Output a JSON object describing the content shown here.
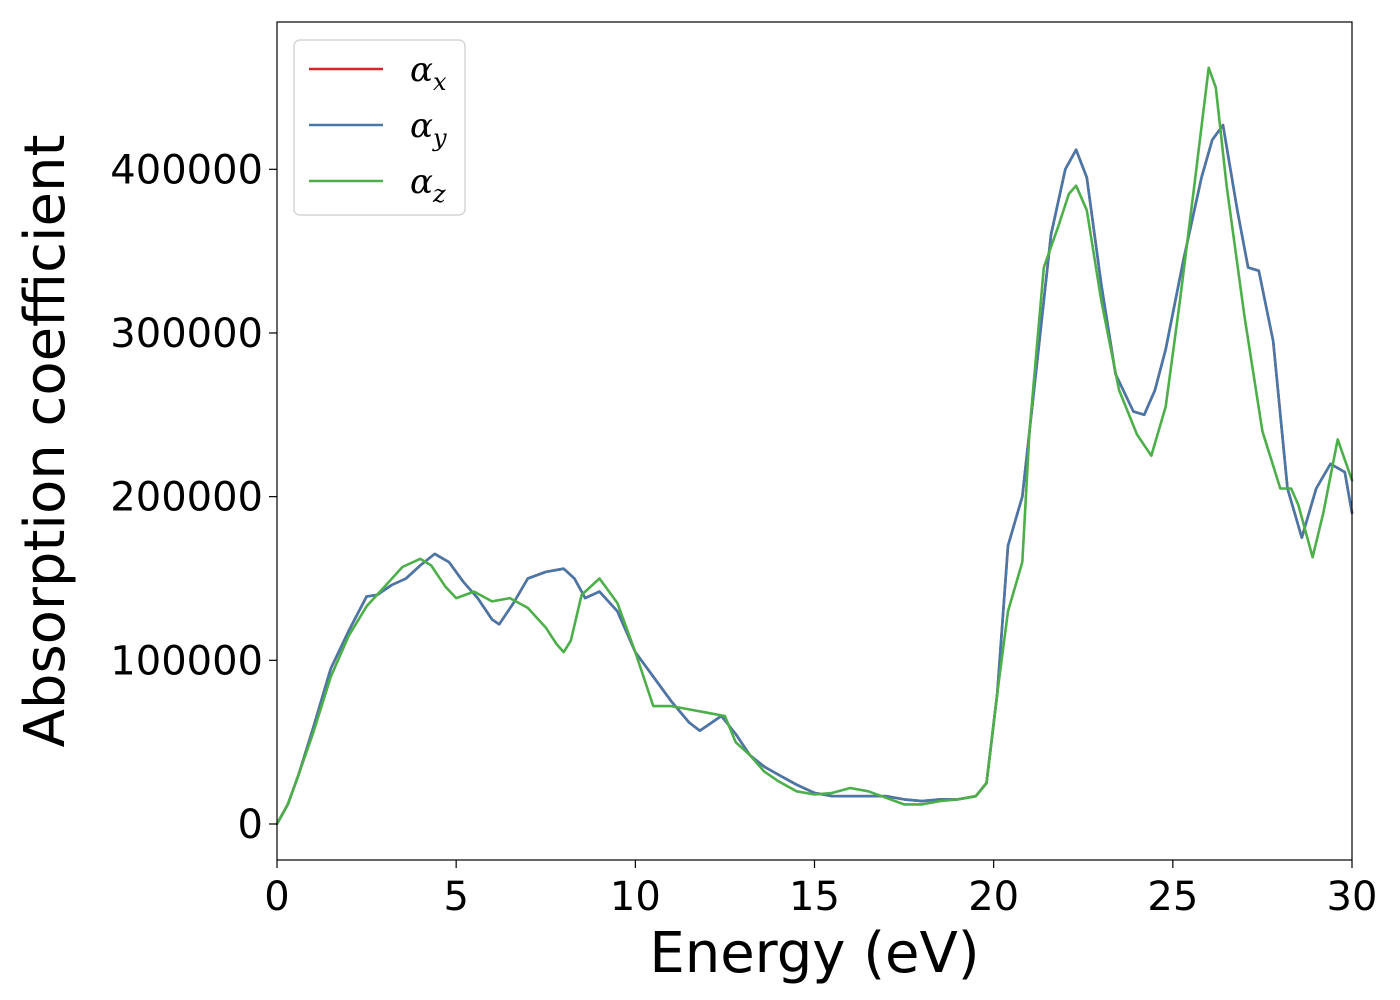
{
  "chart_data": {
    "type": "line",
    "title": "",
    "xlabel": "Energy (eV)",
    "ylabel": "Absorption coefficient",
    "xlim": [
      0,
      30
    ],
    "ylim": [
      -22000,
      490000
    ],
    "xticks": [
      0,
      5,
      10,
      15,
      20,
      25,
      30
    ],
    "yticks": [
      0,
      100000,
      200000,
      300000,
      400000
    ],
    "grid": false,
    "legend_position": "top-left",
    "series": [
      {
        "name": "αx",
        "symbol": "α",
        "subscript": "x",
        "color": "#d62728",
        "x": [
          0,
          0.3,
          0.6,
          1.0,
          1.5,
          2.0,
          2.5,
          2.8,
          3.2,
          3.6,
          4.0,
          4.4,
          4.8,
          5.2,
          5.6,
          6.0,
          6.2,
          6.6,
          7.0,
          7.5,
          8.0,
          8.3,
          8.6,
          9.0,
          9.5,
          10.0,
          10.5,
          11.0,
          11.5,
          11.8,
          12.0,
          12.4,
          12.8,
          13.2,
          13.6,
          14.0,
          14.5,
          15.0,
          15.5,
          16.0,
          16.5,
          17.0,
          17.5,
          18.0,
          18.5,
          19.0,
          19.5,
          19.8,
          20.1,
          20.4,
          20.8,
          21.2,
          21.6,
          22.0,
          22.3,
          22.6,
          23.0,
          23.4,
          23.9,
          24.2,
          24.5,
          24.8,
          25.3,
          25.8,
          26.1,
          26.4,
          26.8,
          27.1,
          27.4,
          27.8,
          28.2,
          28.6,
          29.0,
          29.4,
          29.8,
          30.0
        ],
        "values": [
          0,
          12000,
          30000,
          58000,
          95000,
          118000,
          139000,
          140000,
          146000,
          150000,
          158000,
          165000,
          160000,
          148000,
          138000,
          125000,
          122000,
          135000,
          150000,
          154000,
          156000,
          150000,
          138000,
          142000,
          130000,
          105000,
          90000,
          75000,
          62000,
          57000,
          60000,
          66000,
          55000,
          42000,
          35000,
          30000,
          24000,
          19000,
          17000,
          17000,
          17000,
          17000,
          15000,
          14000,
          15000,
          15000,
          17000,
          25000,
          80000,
          170000,
          200000,
          280000,
          360000,
          400000,
          412000,
          395000,
          330000,
          275000,
          252000,
          250000,
          265000,
          290000,
          345000,
          395000,
          418000,
          427000,
          375000,
          340000,
          338000,
          295000,
          205000,
          175000,
          205000,
          220000,
          215000,
          190000
        ]
      },
      {
        "name": "αy",
        "symbol": "α",
        "subscript": "y",
        "color": "#4878a8",
        "x": [
          0,
          0.3,
          0.6,
          1.0,
          1.5,
          2.0,
          2.5,
          2.8,
          3.2,
          3.6,
          4.0,
          4.4,
          4.8,
          5.2,
          5.6,
          6.0,
          6.2,
          6.6,
          7.0,
          7.5,
          8.0,
          8.3,
          8.6,
          9.0,
          9.5,
          10.0,
          10.5,
          11.0,
          11.5,
          11.8,
          12.0,
          12.4,
          12.8,
          13.2,
          13.6,
          14.0,
          14.5,
          15.0,
          15.5,
          16.0,
          16.5,
          17.0,
          17.5,
          18.0,
          18.5,
          19.0,
          19.5,
          19.8,
          20.1,
          20.4,
          20.8,
          21.2,
          21.6,
          22.0,
          22.3,
          22.6,
          23.0,
          23.4,
          23.9,
          24.2,
          24.5,
          24.8,
          25.3,
          25.8,
          26.1,
          26.4,
          26.8,
          27.1,
          27.4,
          27.8,
          28.2,
          28.6,
          29.0,
          29.4,
          29.8,
          30.0
        ],
        "values": [
          0,
          12000,
          30000,
          58000,
          95000,
          118000,
          139000,
          140000,
          146000,
          150000,
          158000,
          165000,
          160000,
          148000,
          138000,
          125000,
          122000,
          135000,
          150000,
          154000,
          156000,
          150000,
          138000,
          142000,
          130000,
          105000,
          90000,
          75000,
          62000,
          57000,
          60000,
          66000,
          55000,
          42000,
          35000,
          30000,
          24000,
          19000,
          17000,
          17000,
          17000,
          17000,
          15000,
          14000,
          15000,
          15000,
          17000,
          25000,
          80000,
          170000,
          200000,
          280000,
          360000,
          400000,
          412000,
          395000,
          330000,
          275000,
          252000,
          250000,
          265000,
          290000,
          345000,
          395000,
          418000,
          427000,
          375000,
          340000,
          338000,
          295000,
          205000,
          175000,
          205000,
          220000,
          215000,
          190000
        ]
      },
      {
        "name": "αz",
        "symbol": "α",
        "subscript": "z",
        "color": "#4daf4a",
        "x": [
          0,
          0.3,
          0.6,
          1.0,
          1.5,
          2.0,
          2.5,
          3.0,
          3.5,
          4.0,
          4.3,
          4.7,
          5.0,
          5.5,
          6.0,
          6.5,
          7.0,
          7.5,
          7.8,
          8.0,
          8.2,
          8.5,
          9.0,
          9.5,
          10.0,
          10.5,
          11.0,
          11.5,
          12.0,
          12.5,
          12.8,
          13.2,
          13.6,
          14.0,
          14.5,
          15.0,
          15.5,
          16.0,
          16.5,
          17.0,
          17.5,
          18.0,
          18.5,
          19.0,
          19.5,
          19.8,
          20.1,
          20.4,
          20.8,
          21.0,
          21.4,
          21.8,
          22.1,
          22.3,
          22.6,
          23.0,
          23.5,
          24.0,
          24.4,
          24.8,
          25.2,
          25.6,
          26.0,
          26.2,
          26.5,
          27.0,
          27.5,
          28.0,
          28.3,
          28.5,
          28.9,
          29.2,
          29.6,
          30.0
        ],
        "values": [
          0,
          12000,
          30000,
          55000,
          90000,
          115000,
          133000,
          145000,
          157000,
          162000,
          158000,
          145000,
          138000,
          142000,
          136000,
          138000,
          132000,
          120000,
          110000,
          105000,
          112000,
          140000,
          150000,
          135000,
          105000,
          72000,
          72000,
          70000,
          68000,
          66000,
          50000,
          42000,
          32000,
          26000,
          20000,
          18000,
          19000,
          22000,
          20000,
          16000,
          12000,
          12000,
          14000,
          15000,
          17000,
          25000,
          80000,
          130000,
          160000,
          240000,
          340000,
          365000,
          385000,
          390000,
          375000,
          320000,
          265000,
          238000,
          225000,
          255000,
          320000,
          390000,
          462000,
          450000,
          390000,
          310000,
          240000,
          205000,
          205000,
          195000,
          163000,
          190000,
          235000,
          210000
        ]
      }
    ]
  }
}
